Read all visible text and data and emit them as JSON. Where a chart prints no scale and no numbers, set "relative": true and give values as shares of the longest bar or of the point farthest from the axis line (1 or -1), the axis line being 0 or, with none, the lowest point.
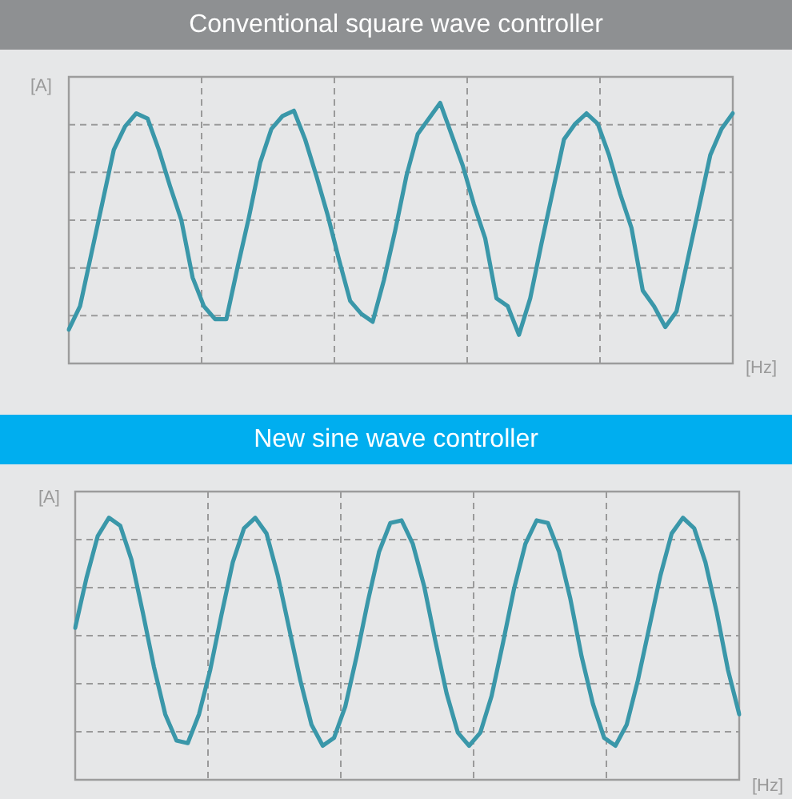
{
  "chart_data": [
    {
      "type": "line",
      "title": "Conventional square wave controller",
      "xlabel": "[Hz]",
      "ylabel": "[A]",
      "relative": true,
      "grid": true,
      "color": "#3a97a9",
      "categories": [
        null,
        null,
        null,
        null,
        null,
        null,
        null,
        null,
        null,
        null,
        null,
        null,
        null,
        null,
        null,
        null,
        null,
        null,
        null,
        null,
        null,
        null,
        null,
        null,
        null,
        null,
        null,
        null,
        null,
        null,
        null,
        null,
        null,
        null,
        null,
        null,
        null,
        null,
        null,
        null,
        null,
        null,
        null,
        null,
        null,
        null,
        null,
        null,
        null,
        null,
        null,
        null,
        null,
        null,
        null,
        null,
        null,
        null,
        null,
        null
      ],
      "values": [
        0.13,
        0.22,
        0.42,
        0.62,
        0.82,
        0.91,
        0.96,
        0.94,
        0.82,
        0.68,
        0.55,
        0.33,
        0.22,
        0.17,
        0.17,
        0.37,
        0.56,
        0.77,
        0.9,
        0.95,
        0.97,
        0.86,
        0.72,
        0.57,
        0.4,
        0.24,
        0.19,
        0.16,
        0.32,
        0.51,
        0.72,
        0.88,
        0.94,
        1.0,
        0.88,
        0.76,
        0.61,
        0.48,
        0.25,
        0.22,
        0.11,
        0.25,
        0.46,
        0.66,
        0.86,
        0.92,
        0.96,
        0.92,
        0.8,
        0.65,
        0.52,
        0.28,
        0.22,
        0.14,
        0.2,
        0.4,
        0.6,
        0.8,
        0.9,
        0.96
      ]
    },
    {
      "type": "line",
      "title": "New sine wave controller",
      "xlabel": "[Hz]",
      "ylabel": "[A]",
      "relative": true,
      "grid": true,
      "color": "#3a97a9",
      "categories": [
        null,
        null,
        null,
        null,
        null,
        null,
        null,
        null,
        null,
        null,
        null,
        null,
        null,
        null,
        null,
        null,
        null,
        null,
        null,
        null,
        null,
        null,
        null,
        null,
        null,
        null,
        null,
        null,
        null,
        null,
        null,
        null,
        null,
        null,
        null,
        null,
        null,
        null,
        null,
        null,
        null,
        null,
        null,
        null,
        null,
        null,
        null,
        null,
        null,
        null,
        null,
        null,
        null,
        null,
        null,
        null,
        null,
        null,
        null,
        null
      ],
      "values": [
        0.58,
        0.77,
        0.93,
        1.0,
        0.97,
        0.84,
        0.64,
        0.43,
        0.25,
        0.15,
        0.14,
        0.25,
        0.42,
        0.63,
        0.83,
        0.96,
        1.0,
        0.94,
        0.78,
        0.58,
        0.38,
        0.21,
        0.13,
        0.16,
        0.28,
        0.47,
        0.68,
        0.87,
        0.98,
        0.99,
        0.9,
        0.74,
        0.53,
        0.33,
        0.18,
        0.13,
        0.18,
        0.32,
        0.52,
        0.73,
        0.9,
        0.99,
        0.98,
        0.87,
        0.69,
        0.47,
        0.29,
        0.16,
        0.13,
        0.21,
        0.38,
        0.58,
        0.78,
        0.94,
        1.0,
        0.96,
        0.83,
        0.64,
        0.42,
        0.25
      ]
    }
  ]
}
